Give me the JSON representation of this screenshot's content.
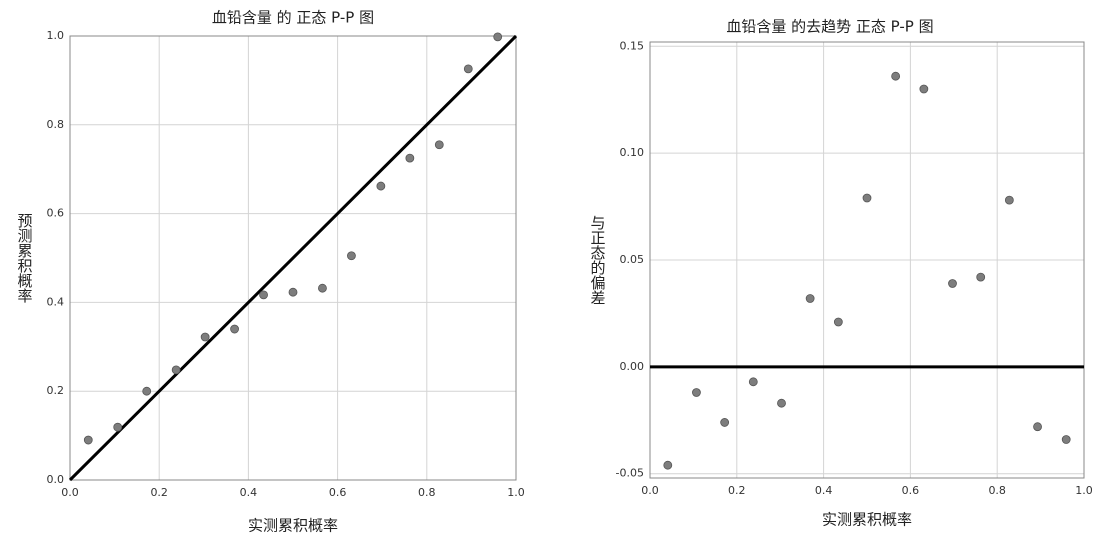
{
  "chart_data": [
    {
      "type": "scatter",
      "title": "血铅含量 的 正态 P-P 图",
      "x_label": "实测累积概率",
      "y_label": "预测累积概率",
      "reference_line": "diagonal",
      "grid": true,
      "color": "#7d7d7d",
      "x": [
        0.041,
        0.107,
        0.172,
        0.238,
        0.303,
        0.369,
        0.434,
        0.5,
        0.566,
        0.631,
        0.697,
        0.762,
        0.828,
        0.893,
        0.959
      ],
      "values": [
        0.09,
        0.119,
        0.2,
        0.248,
        0.322,
        0.34,
        0.417,
        0.423,
        0.432,
        0.505,
        0.662,
        0.725,
        0.755,
        0.926,
        0.998
      ],
      "xlim": [
        0,
        1
      ],
      "ylim": [
        0,
        1
      ],
      "xticks": [
        {
          "value": 0,
          "label": "0.0"
        },
        {
          "value": 0.2,
          "label": "0.2"
        },
        {
          "value": 0.4,
          "label": "0.4"
        },
        {
          "value": 0.6,
          "label": "0.6"
        },
        {
          "value": 0.8,
          "label": "0.8"
        },
        {
          "value": 1,
          "label": "1.0"
        }
      ],
      "yticks": [
        {
          "value": 0,
          "label": "0.0"
        },
        {
          "value": 0.2,
          "label": "0.2"
        },
        {
          "value": 0.4,
          "label": "0.4"
        },
        {
          "value": 0.6,
          "label": "0.6"
        },
        {
          "value": 0.8,
          "label": "0.8"
        },
        {
          "value": 1,
          "label": "1.0"
        }
      ]
    },
    {
      "type": "scatter",
      "title": "血铅含量 的去趋势 正态 P-P 图",
      "x_label": "实测累积概率",
      "y_label": "与正态的偏差",
      "reference_line": "zero",
      "grid": true,
      "color": "#7d7d7d",
      "x": [
        0.041,
        0.107,
        0.172,
        0.238,
        0.303,
        0.369,
        0.434,
        0.5,
        0.566,
        0.631,
        0.697,
        0.762,
        0.828,
        0.893,
        0.959
      ],
      "values": [
        -0.046,
        -0.012,
        -0.026,
        -0.007,
        -0.017,
        0.032,
        0.021,
        0.079,
        0.136,
        0.13,
        0.039,
        0.042,
        0.078,
        -0.028,
        -0.034
      ],
      "xlim": [
        0,
        1
      ],
      "ylim": [
        -0.052,
        0.152
      ],
      "xticks": [
        {
          "value": 0,
          "label": "0.0"
        },
        {
          "value": 0.2,
          "label": "0.2"
        },
        {
          "value": 0.4,
          "label": "0.4"
        },
        {
          "value": 0.6,
          "label": "0.6"
        },
        {
          "value": 0.8,
          "label": "0.8"
        },
        {
          "value": 1,
          "label": "1.0"
        }
      ],
      "yticks": [
        {
          "value": -0.05,
          "label": "-0.05"
        },
        {
          "value": 0,
          "label": "0.00"
        },
        {
          "value": 0.05,
          "label": "0.05"
        },
        {
          "value": 0.1,
          "label": "0.10"
        },
        {
          "value": 0.15,
          "label": "0.15"
        }
      ]
    }
  ]
}
